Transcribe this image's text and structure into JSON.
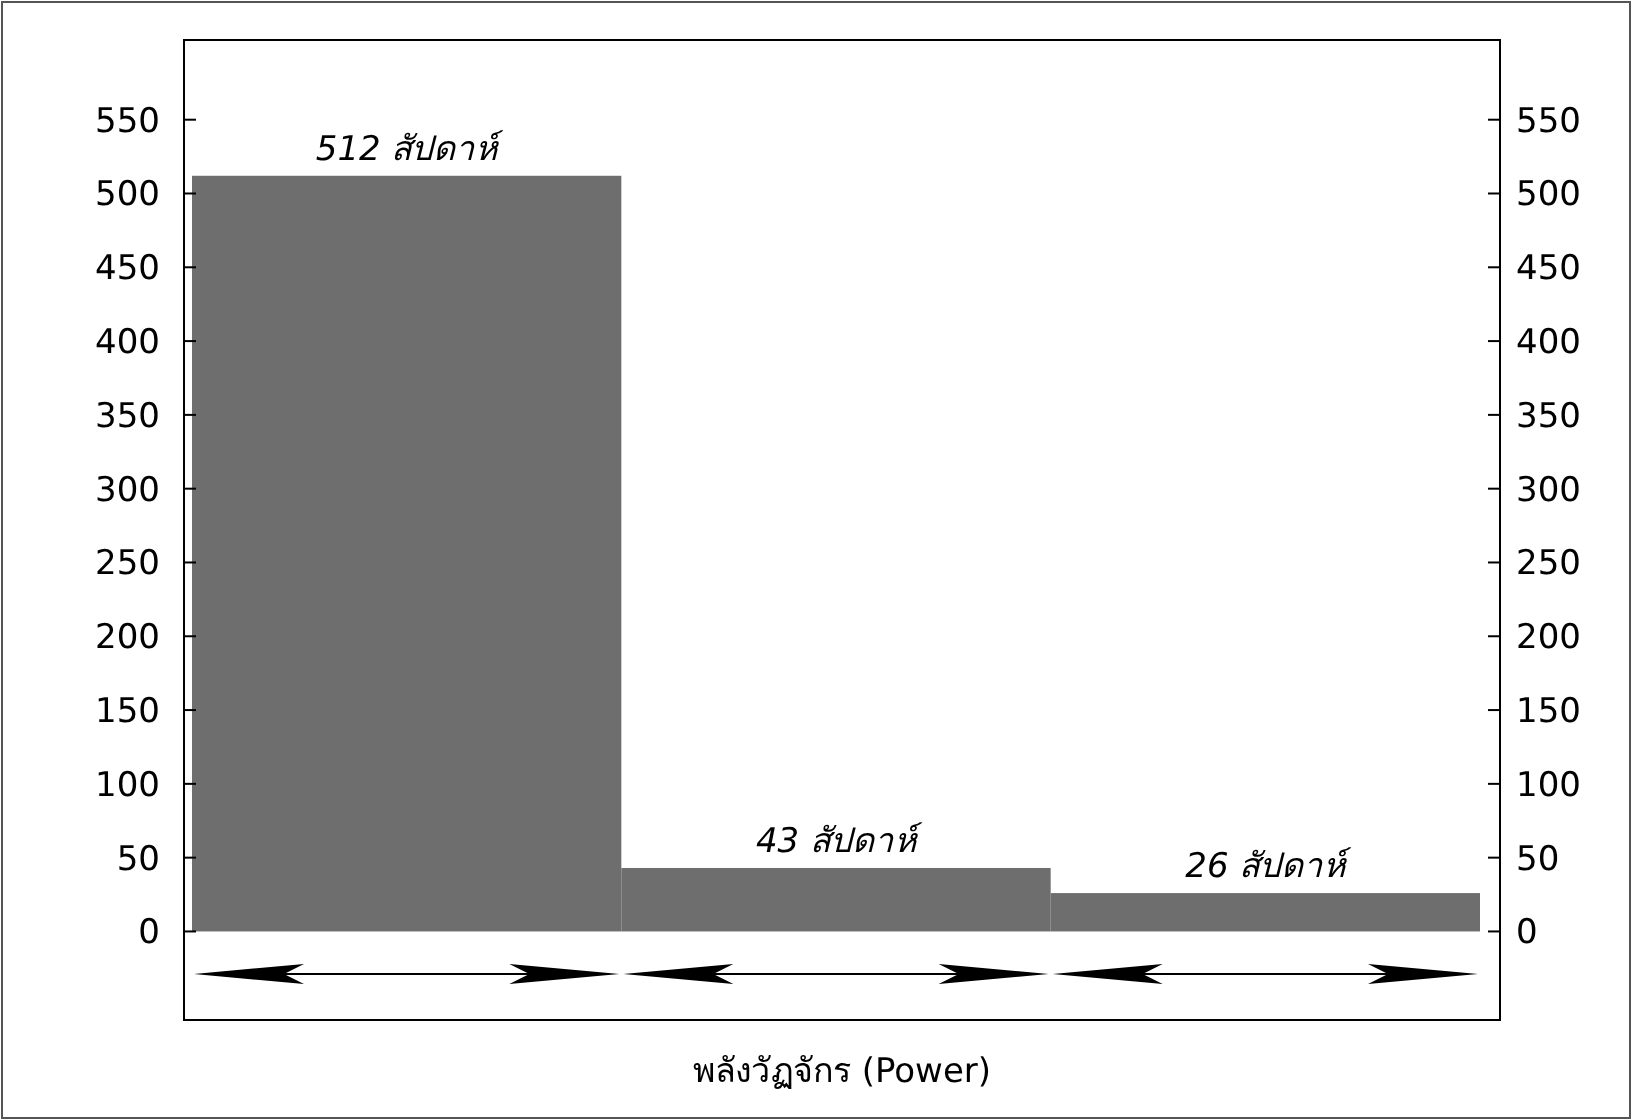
{
  "chart_data": {
    "type": "bar",
    "xlabel": "พลังวัฏจักร (Power)",
    "categories": [
      null,
      null,
      null
    ],
    "values": [
      512,
      43,
      26
    ],
    "value_labels": [
      "512 สัปดาห์",
      "43 สัปดาห์",
      "26 สัปดาห์"
    ],
    "color": "#6e6e6e",
    "ylim": [
      -60,
      604
    ],
    "yticks": [
      0,
      50,
      100,
      150,
      200,
      250,
      300,
      350,
      400,
      450,
      500,
      550
    ],
    "y2lim": [
      -60,
      604
    ],
    "y2ticks": [
      0,
      50,
      100,
      150,
      200,
      250,
      300,
      350,
      400,
      450,
      500,
      550
    ],
    "grid": false
  }
}
